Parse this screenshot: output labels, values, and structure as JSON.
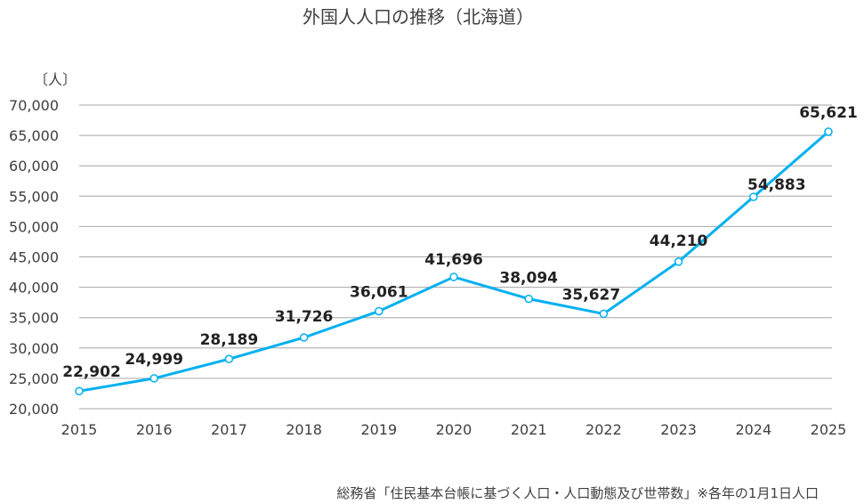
{
  "chart_data": {
    "type": "line",
    "title": "外国人人口の推移（北海道）",
    "ylabel": "〔人〕",
    "xlabel": "",
    "categories": [
      "2015",
      "2016",
      "2017",
      "2018",
      "2019",
      "2020",
      "2021",
      "2022",
      "2023",
      "2024",
      "2025"
    ],
    "values": [
      22902,
      24999,
      28189,
      31726,
      36061,
      41696,
      38094,
      35627,
      44210,
      54883,
      65621
    ],
    "data_labels": [
      "22,902",
      "24,999",
      "28,189",
      "31,726",
      "36,061",
      "41,696",
      "38,094",
      "35,627",
      "44,210",
      "54,883",
      "65,621"
    ],
    "ylim": [
      20000,
      70000
    ],
    "yticks": [
      "20,000",
      "25,000",
      "30,000",
      "35,000",
      "40,000",
      "45,000",
      "50,000",
      "55,000",
      "60,000",
      "65,000",
      "70,000"
    ],
    "grid": true,
    "legend": "none",
    "line_color": "#00B0F0",
    "note": "総務省「住民基本台帳に基づく人口・人口動態及び世帯数」※各年の1月1日人口"
  }
}
